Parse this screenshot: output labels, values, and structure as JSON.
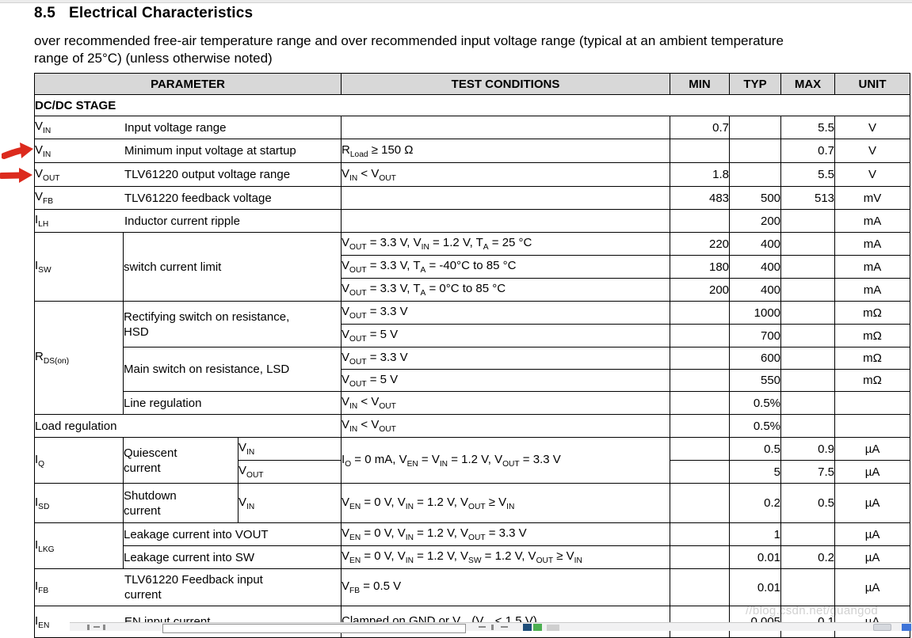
{
  "page": {
    "section_number": "8.5",
    "section_title": "Electrical Characteristics",
    "intro_line1": "over recommended free-air temperature range and over recommended input voltage range (typical at an ambient temperature",
    "intro_line2": "range of 25°C) (unless otherwise noted)",
    "watermark": "//blog.csdn.net/guangod",
    "arrow_color": "#dc2a1d"
  },
  "table": {
    "col_headers": {
      "parameter": "PARAMETER",
      "test_conditions": "TEST CONDITIONS",
      "min": "MIN",
      "typ": "TYP",
      "max": "MAX",
      "unit": "UNIT"
    },
    "section_label": "DC/DC STAGE",
    "vin_range": {
      "sym": "V~IN~",
      "desc": "Input voltage range",
      "cond": "",
      "min": "0.7",
      "typ": "",
      "max": "5.5",
      "unit": "V"
    },
    "vin_startup": {
      "sym": "V~IN~",
      "desc": "Minimum input voltage at startup",
      "cond": "R~Load~ ≥ 150 Ω",
      "min": "",
      "typ": "",
      "max": "0.7",
      "unit": "V"
    },
    "vout_range": {
      "sym": "V~OUT~",
      "desc": "TLV61220 output voltage range",
      "cond": "V~IN~ < V~OUT~",
      "min": "1.8",
      "typ": "",
      "max": "5.5",
      "unit": "V"
    },
    "vfb": {
      "sym": "V~FB~",
      "desc": "TLV61220 feedback voltage",
      "cond": "",
      "min": "483",
      "typ": "500",
      "max": "513",
      "unit": "mV"
    },
    "ilh": {
      "sym": "I~LH~",
      "desc": "Inductor current ripple",
      "cond": "",
      "min": "",
      "typ": "200",
      "max": "",
      "unit": "mA"
    },
    "isw": {
      "sym": "I~SW~",
      "desc": "switch current limit",
      "rows": [
        {
          "cond": "V~OUT~ = 3.3 V, V~IN~ = 1.2 V, T~A~ = 25 °C",
          "min": "220",
          "typ": "400",
          "max": "",
          "unit": "mA"
        },
        {
          "cond": "V~OUT~ = 3.3 V, T~A~ = -40°C to 85 °C",
          "min": "180",
          "typ": "400",
          "max": "",
          "unit": "mA"
        },
        {
          "cond": "V~OUT~ = 3.3 V, T~A~ = 0°C to 85 °C",
          "min": "200",
          "typ": "400",
          "max": "",
          "unit": "mA"
        }
      ]
    },
    "rdson": {
      "sym": "R~DS(on)~",
      "hsd": {
        "desc": "Rectifying switch on resistance, HSD",
        "rows": [
          {
            "cond": "V~OUT~ = 3.3 V",
            "min": "",
            "typ": "1000",
            "max": "",
            "unit": "mΩ"
          },
          {
            "cond": "V~OUT~ = 5 V",
            "min": "",
            "typ": "700",
            "max": "",
            "unit": "mΩ"
          }
        ]
      },
      "lsd": {
        "desc": "Main switch on resistance, LSD",
        "rows": [
          {
            "cond": "V~OUT~ = 3.3 V",
            "min": "",
            "typ": "600",
            "max": "",
            "unit": "mΩ"
          },
          {
            "cond": "V~OUT~ = 5 V",
            "min": "",
            "typ": "550",
            "max": "",
            "unit": "mΩ"
          }
        ]
      },
      "line_reg": {
        "desc": "Line regulation",
        "cond": "V~IN~ < V~OUT~",
        "min": "",
        "typ": "0.5%",
        "max": "",
        "unit": ""
      }
    },
    "load_reg": {
      "desc": "Load regulation",
      "cond": "V~IN~ < V~OUT~",
      "min": "",
      "typ": "0.5%",
      "max": "",
      "unit": ""
    },
    "iq": {
      "sym": "I~Q~",
      "desc": "Quiescent current",
      "cond": "I~O~ = 0 mA, V~EN~ = V~IN~ = 1.2 V, V~OUT~ = 3.3 V",
      "rows": [
        {
          "sub": "V~IN~",
          "min": "",
          "typ": "0.5",
          "max": "0.9",
          "unit": "µA"
        },
        {
          "sub": "V~OUT~",
          "min": "",
          "typ": "5",
          "max": "7.5",
          "unit": "µA"
        }
      ]
    },
    "isd": {
      "sym": "I~SD~",
      "desc": "Shutdown current",
      "sub": "V~IN~",
      "cond": "V~EN~ = 0 V, V~IN~ = 1.2 V, V~OUT~ ≥ V~IN~",
      "min": "",
      "typ": "0.2",
      "max": "0.5",
      "unit": "µA"
    },
    "ilkg": {
      "sym": "I~LKG~",
      "rows": [
        {
          "desc": "Leakage current into VOUT",
          "cond": "V~EN~ = 0 V, V~IN~ = 1.2 V, V~OUT~ = 3.3 V",
          "min": "",
          "typ": "1",
          "max": "",
          "unit": "µA"
        },
        {
          "desc": "Leakage current into SW",
          "cond": "V~EN~ = 0 V, V~IN~ = 1.2 V, V~SW~ = 1.2 V, V~OUT~ ≥ V~IN~",
          "min": "",
          "typ": "0.01",
          "max": "0.2",
          "unit": "µA"
        }
      ]
    },
    "ifb": {
      "sym": "I~FB~",
      "desc": "TLV61220 Feedback input current",
      "cond": "V~FB~ = 0.5 V",
      "min": "",
      "typ": "0.01",
      "max": "",
      "unit": "µA"
    },
    "ien": {
      "sym": "I~EN~",
      "desc": "EN input current",
      "cond": "Clamped on GND or V~IN~ (V~IN~ < 1.5 V)",
      "min": "",
      "typ": "0.005",
      "max": "0.1",
      "unit": "µA"
    }
  }
}
